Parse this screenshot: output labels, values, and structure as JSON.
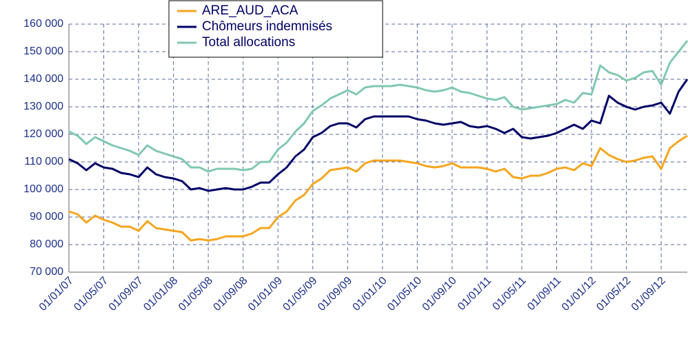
{
  "chart_data": {
    "type": "line",
    "categories": [
      "01/01/07",
      null,
      null,
      null,
      "01/05/07",
      null,
      null,
      null,
      "01/09/07",
      null,
      null,
      null,
      "01/01/08",
      null,
      null,
      null,
      "01/05/08",
      null,
      null,
      null,
      "01/09/08",
      null,
      null,
      null,
      "01/01/09",
      null,
      null,
      null,
      "01/05/09",
      null,
      null,
      null,
      "01/09/09",
      null,
      null,
      null,
      "01/01/10",
      null,
      null,
      null,
      "01/05/10",
      null,
      null,
      null,
      "01/09/10",
      null,
      null,
      null,
      "01/01/11",
      null,
      null,
      null,
      "01/05/11",
      null,
      null,
      null,
      "01/09/11",
      null,
      null,
      null,
      "01/01/12",
      null,
      null,
      null,
      "01/05/12",
      null,
      null,
      null,
      "01/09/12",
      null,
      null,
      null
    ],
    "series": [
      {
        "name": "ARE_AUD_ACA",
        "color": "#f5a51e",
        "values": [
          92000,
          91000,
          88000,
          90500,
          89000,
          88000,
          86500,
          86500,
          85000,
          88500,
          86000,
          85500,
          85000,
          84500,
          81500,
          82000,
          81500,
          82000,
          83000,
          83000,
          83000,
          84000,
          86000,
          86000,
          90000,
          92000,
          96000,
          98000,
          102000,
          104000,
          107000,
          107500,
          108000,
          106500,
          109500,
          110500,
          110500,
          110500,
          110500,
          110000,
          109500,
          108500,
          108000,
          108500,
          109500,
          108000,
          108000,
          108000,
          107500,
          106500,
          107500,
          104500,
          104000,
          105000,
          105000,
          106000,
          107500,
          108000,
          107000,
          109500,
          108500,
          115000,
          112500,
          111000,
          110000,
          110500,
          111500,
          112000,
          107500,
          115000,
          117500,
          119500
        ]
      },
      {
        "name": "Chômeurs indemnisés",
        "color": "#000066",
        "values": [
          111000,
          109500,
          107000,
          109500,
          108000,
          107500,
          106000,
          105500,
          104500,
          108000,
          105500,
          104500,
          104000,
          103000,
          100000,
          100500,
          99500,
          100000,
          100500,
          100000,
          100000,
          101000,
          102500,
          102500,
          105500,
          108000,
          112000,
          114500,
          119000,
          120500,
          123000,
          124000,
          124000,
          122500,
          125500,
          126500,
          126500,
          126500,
          126500,
          126500,
          125500,
          125000,
          124000,
          123500,
          124000,
          124500,
          123000,
          122500,
          123000,
          122000,
          120500,
          122000,
          119000,
          118500,
          119000,
          119500,
          120500,
          122000,
          123500,
          122000,
          125000,
          124000,
          134000,
          131500,
          130000,
          129000,
          130000,
          130500,
          131500,
          127500,
          135500,
          140000
        ]
      },
      {
        "name": "Total allocations",
        "color": "#80c8b0",
        "values": [
          121000,
          119500,
          116500,
          119000,
          117500,
          116000,
          115000,
          114000,
          112500,
          116000,
          114000,
          113000,
          112000,
          111000,
          108000,
          108000,
          106500,
          107500,
          107500,
          107500,
          107000,
          107500,
          110000,
          110000,
          114500,
          117000,
          121000,
          124000,
          128500,
          130500,
          133000,
          134500,
          136000,
          134500,
          137000,
          137500,
          137500,
          137500,
          138000,
          137500,
          137000,
          136000,
          135500,
          136000,
          137000,
          135500,
          135000,
          134000,
          133000,
          132500,
          133500,
          130000,
          129000,
          129500,
          130000,
          130500,
          131000,
          132500,
          131500,
          135000,
          134500,
          145000,
          142500,
          141500,
          139500,
          140500,
          142500,
          143000,
          138000,
          146000,
          150000,
          154000
        ]
      }
    ],
    "ylim": [
      70000,
      160000
    ],
    "yticks": [
      {
        "value": 70000,
        "label": "70 000"
      },
      {
        "value": 80000,
        "label": "80 000"
      },
      {
        "value": 90000,
        "label": "90 000"
      },
      {
        "value": 100000,
        "label": "100 000"
      },
      {
        "value": 110000,
        "label": "110 000"
      },
      {
        "value": 120000,
        "label": "120 000"
      },
      {
        "value": 130000,
        "label": "130 000"
      },
      {
        "value": 140000,
        "label": "140 000"
      },
      {
        "value": 150000,
        "label": "150 000"
      },
      {
        "value": 160000,
        "label": "160 000"
      }
    ],
    "grid": true,
    "legend": "upper center"
  }
}
